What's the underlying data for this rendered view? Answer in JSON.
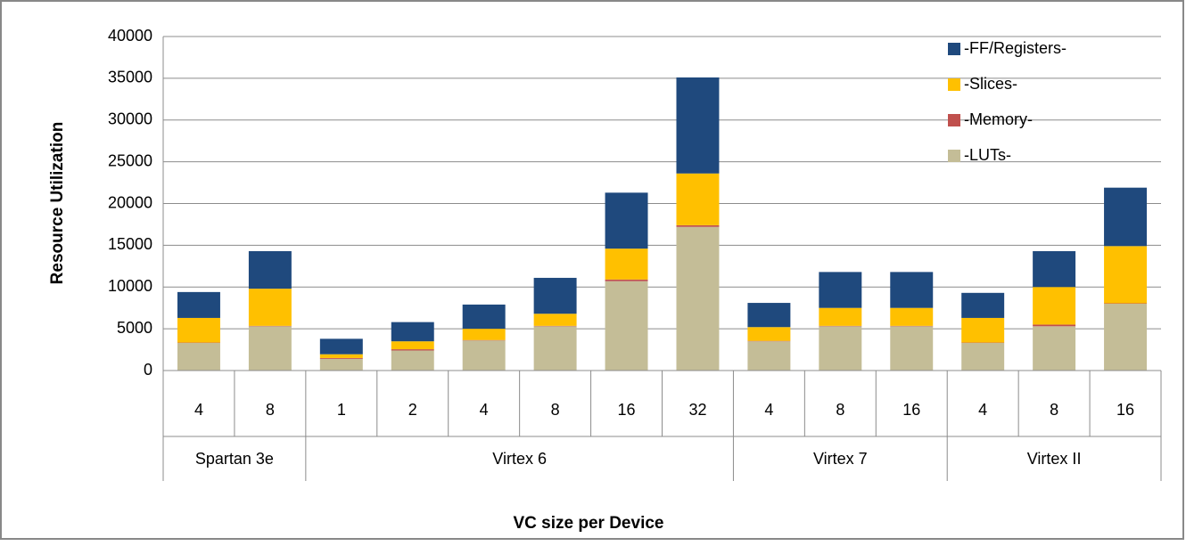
{
  "chart_data": {
    "type": "stacked-bar",
    "y_label": "Resource  Utilization",
    "x_label": "VC size per Device",
    "groups": [
      {
        "label": "Spartan 3e",
        "categories": [
          "4",
          "8"
        ]
      },
      {
        "label": "Virtex 6",
        "categories": [
          "1",
          "2",
          "4",
          "8",
          "16",
          "32"
        ]
      },
      {
        "label": "Virtex 7",
        "categories": [
          "4",
          "8",
          "16"
        ]
      },
      {
        "label": "Virtex II",
        "categories": [
          "4",
          "8",
          "16"
        ]
      }
    ],
    "series": [
      {
        "name": "-LUTs-",
        "color": "#c4bd97",
        "values": [
          3300,
          5300,
          1400,
          2400,
          3600,
          5300,
          10700,
          17200,
          3500,
          5300,
          5300,
          3300,
          5300,
          8000
        ]
      },
      {
        "name": "-Memory-",
        "color": "#c0504d",
        "values": [
          50,
          50,
          100,
          150,
          50,
          50,
          200,
          200,
          50,
          50,
          50,
          50,
          200,
          50
        ]
      },
      {
        "name": "-Slices-",
        "color": "#ffc000",
        "values": [
          2950,
          4450,
          450,
          950,
          1350,
          1450,
          3700,
          6200,
          1650,
          2150,
          2150,
          2950,
          4500,
          6850
        ]
      },
      {
        "name": "-FF/Registers-",
        "color": "#1f497d",
        "values": [
          3100,
          4500,
          1850,
          2300,
          2900,
          4300,
          6700,
          11500,
          2900,
          4300,
          4300,
          3000,
          4300,
          7000
        ]
      }
    ],
    "ylim": [
      0,
      40000
    ],
    "yticks": [
      0,
      5000,
      10000,
      15000,
      20000,
      25000,
      30000,
      35000,
      40000
    ],
    "grid": true,
    "legend": "top-right"
  }
}
